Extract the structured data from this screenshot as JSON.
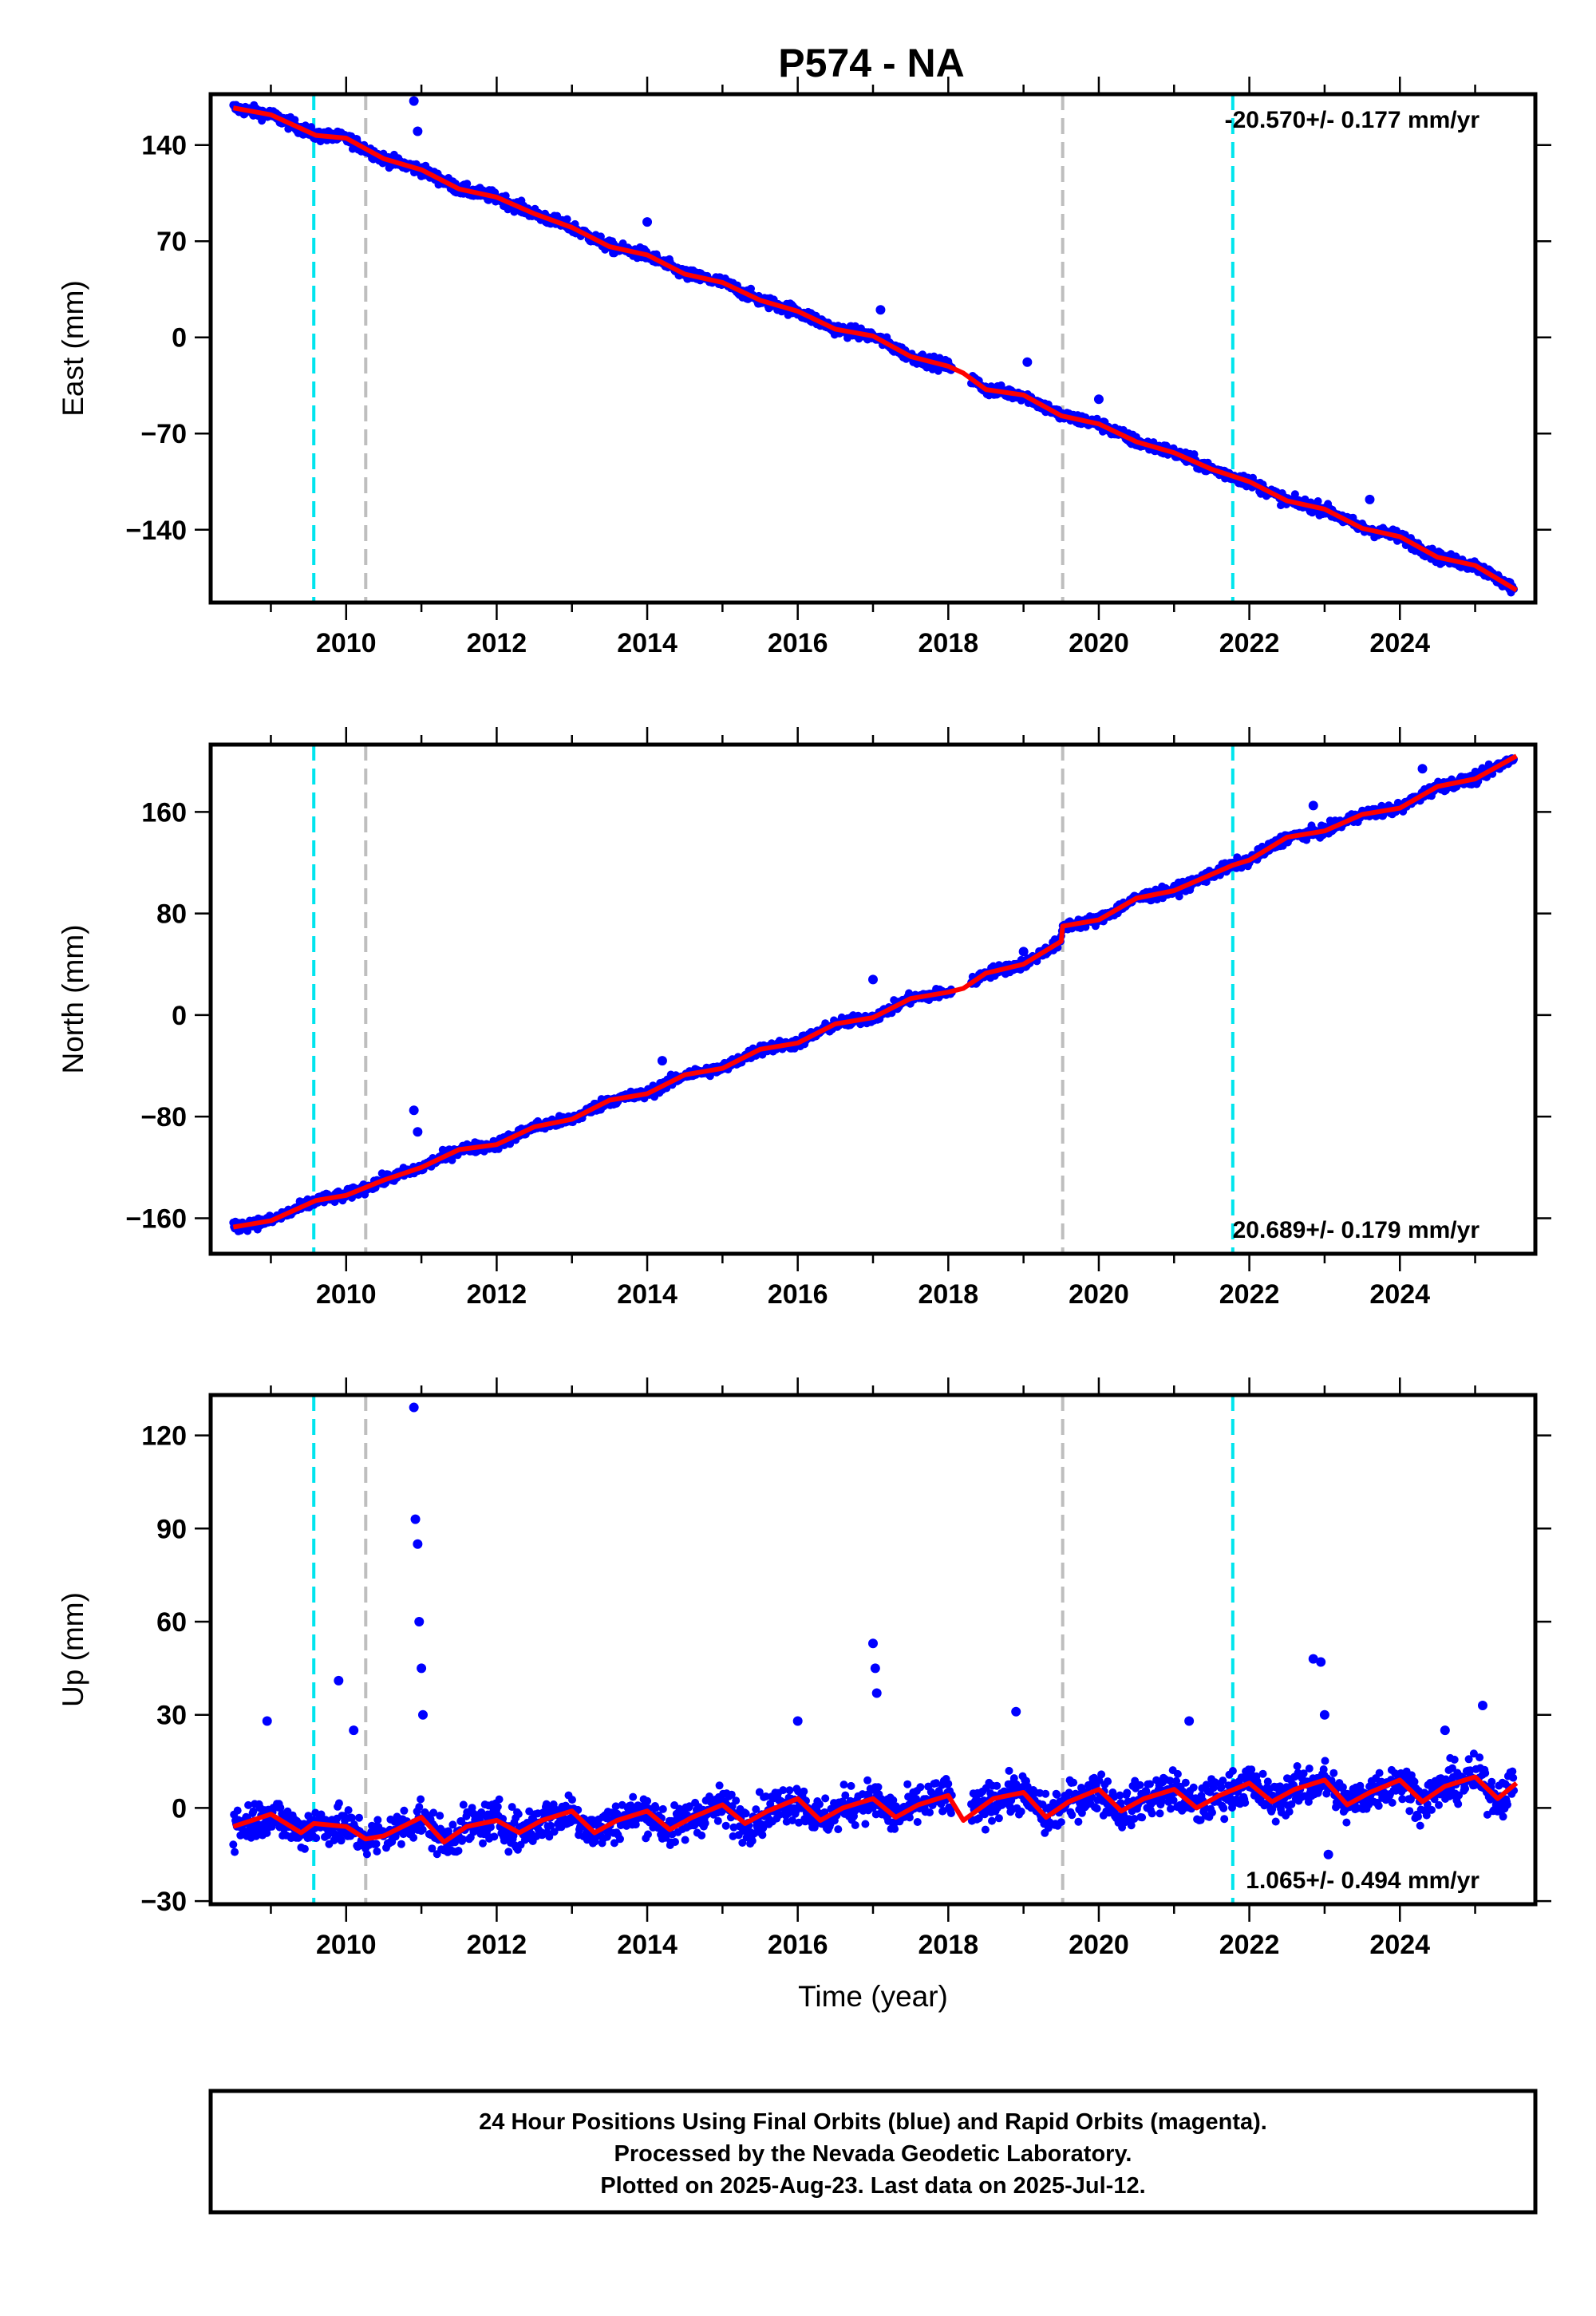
{
  "figure_title": "P574 - NA",
  "colors": {
    "final_points": "#0000ff",
    "model_line": "#ff0000",
    "equipment_change_line": "#00e5ee",
    "other_event_line": "#bebebe"
  },
  "chart_data": [
    {
      "type": "scatter",
      "panel": "East",
      "title": "",
      "xlabel": "",
      "ylabel": "East (mm)",
      "xlim": [
        2008.2,
        2025.8
      ],
      "ylim": [
        -193,
        177
      ],
      "x_ticks": [
        2010,
        2012,
        2014,
        2016,
        2018,
        2020,
        2022,
        2024
      ],
      "x_tick_labels": [
        "2010",
        "2012",
        "2014",
        "2016",
        "2018",
        "2020",
        "2022",
        "2024"
      ],
      "y_ticks": [
        140,
        70,
        0,
        -70,
        -140
      ],
      "y_tick_labels": [
        "140",
        "70",
        "0",
        "−70",
        "−140"
      ],
      "rate_annotation": "-20.570+/- 0.177 mm/yr",
      "rate_position": "top-right",
      "trend_points": [
        [
          2008.5,
          167
        ],
        [
          2009.0,
          162
        ],
        [
          2009.6,
          147
        ],
        [
          2010.0,
          145
        ],
        [
          2010.5,
          130
        ],
        [
          2011.0,
          122
        ],
        [
          2011.5,
          108
        ],
        [
          2012.0,
          102
        ],
        [
          2012.5,
          90
        ],
        [
          2013.0,
          80
        ],
        [
          2013.5,
          66
        ],
        [
          2014.0,
          60
        ],
        [
          2014.5,
          46
        ],
        [
          2015.0,
          40
        ],
        [
          2015.5,
          27
        ],
        [
          2016.0,
          19
        ],
        [
          2016.5,
          6
        ],
        [
          2017.0,
          1
        ],
        [
          2017.5,
          -14
        ],
        [
          2018.0,
          -21
        ],
        [
          2018.2,
          -26
        ],
        [
          2018.5,
          -38
        ],
        [
          2019.0,
          -42
        ],
        [
          2019.5,
          -57
        ],
        [
          2020.0,
          -63
        ],
        [
          2020.5,
          -76
        ],
        [
          2021.0,
          -84
        ],
        [
          2021.5,
          -96
        ],
        [
          2022.0,
          -105
        ],
        [
          2022.5,
          -119
        ],
        [
          2023.0,
          -125
        ],
        [
          2023.5,
          -139
        ],
        [
          2024.0,
          -145
        ],
        [
          2024.5,
          -160
        ],
        [
          2025.0,
          -166
        ],
        [
          2025.55,
          -184
        ]
      ],
      "outlier_spikes": [
        [
          2010.9,
          172
        ],
        [
          2010.95,
          150
        ],
        [
          2014.0,
          84
        ],
        [
          2017.1,
          20
        ],
        [
          2019.05,
          -18
        ],
        [
          2020.0,
          -45
        ],
        [
          2023.6,
          -118
        ]
      ],
      "equipment_changes_x": [
        2009.57,
        2021.78
      ],
      "other_events_x": [
        2010.26,
        2019.52
      ]
    },
    {
      "type": "scatter",
      "panel": "North",
      "title": "",
      "xlabel": "",
      "ylabel": "North (mm)",
      "xlim": [
        2008.2,
        2025.8
      ],
      "ylim": [
        -188,
        213
      ],
      "x_ticks": [
        2010,
        2012,
        2014,
        2016,
        2018,
        2020,
        2022,
        2024
      ],
      "x_tick_labels": [
        "2010",
        "2012",
        "2014",
        "2016",
        "2018",
        "2020",
        "2022",
        "2024"
      ],
      "y_ticks": [
        160,
        80,
        0,
        -80,
        -160
      ],
      "y_tick_labels": [
        "160",
        "80",
        "0",
        "−80",
        "−160"
      ],
      "rate_annotation": "20.689+/- 0.179 mm/yr",
      "rate_position": "bottom-right",
      "trend_points": [
        [
          2008.5,
          -167
        ],
        [
          2009.0,
          -162
        ],
        [
          2009.6,
          -146
        ],
        [
          2010.0,
          -142
        ],
        [
          2010.5,
          -130
        ],
        [
          2011.0,
          -120
        ],
        [
          2011.5,
          -106
        ],
        [
          2012.0,
          -102
        ],
        [
          2012.5,
          -88
        ],
        [
          2013.0,
          -82
        ],
        [
          2013.5,
          -67
        ],
        [
          2014.0,
          -62
        ],
        [
          2014.5,
          -47
        ],
        [
          2015.0,
          -42
        ],
        [
          2015.5,
          -27
        ],
        [
          2016.0,
          -22
        ],
        [
          2016.5,
          -7
        ],
        [
          2017.0,
          -2
        ],
        [
          2017.5,
          13
        ],
        [
          2018.0,
          18
        ],
        [
          2018.2,
          21
        ],
        [
          2018.5,
          33
        ],
        [
          2019.0,
          40
        ],
        [
          2019.5,
          58
        ],
        [
          2019.52,
          70
        ],
        [
          2020.0,
          75
        ],
        [
          2020.5,
          92
        ],
        [
          2021.0,
          98
        ],
        [
          2021.78,
          118
        ],
        [
          2022.0,
          122
        ],
        [
          2022.5,
          140
        ],
        [
          2023.0,
          145
        ],
        [
          2023.5,
          158
        ],
        [
          2024.0,
          163
        ],
        [
          2024.5,
          180
        ],
        [
          2025.0,
          186
        ],
        [
          2025.55,
          204
        ]
      ],
      "outlier_spikes": [
        [
          2010.9,
          -75
        ],
        [
          2010.95,
          -92
        ],
        [
          2014.2,
          -36
        ],
        [
          2017.0,
          28
        ],
        [
          2019.0,
          50
        ],
        [
          2022.85,
          165
        ],
        [
          2024.3,
          194
        ]
      ],
      "equipment_changes_x": [
        2009.57,
        2021.78
      ],
      "other_events_x": [
        2010.26,
        2019.52
      ]
    },
    {
      "type": "scatter",
      "panel": "Up",
      "title": "",
      "xlabel": "Time (year)",
      "ylabel": "Up (mm)",
      "xlim": [
        2008.2,
        2025.8
      ],
      "ylim": [
        -31,
        133
      ],
      "x_ticks": [
        2010,
        2012,
        2014,
        2016,
        2018,
        2020,
        2022,
        2024
      ],
      "x_tick_labels": [
        "2010",
        "2012",
        "2014",
        "2016",
        "2018",
        "2020",
        "2022",
        "2024"
      ],
      "y_ticks": [
        120,
        90,
        60,
        30,
        0,
        -30
      ],
      "y_tick_labels": [
        "120",
        "90",
        "60",
        "30",
        "0",
        "−30"
      ],
      "rate_annotation": "1.065+/- 0.494 mm/yr",
      "rate_position": "bottom-right",
      "trend_amplitude_mm": 3.5,
      "trend_points": [
        [
          2008.5,
          -6
        ],
        [
          2009.0,
          -2
        ],
        [
          2009.4,
          -8
        ],
        [
          2009.57,
          -5
        ],
        [
          2010.0,
          -6
        ],
        [
          2010.26,
          -10
        ],
        [
          2010.5,
          -9
        ],
        [
          2011.0,
          -3
        ],
        [
          2011.3,
          -11
        ],
        [
          2011.6,
          -6
        ],
        [
          2012.0,
          -4
        ],
        [
          2012.3,
          -8
        ],
        [
          2012.6,
          -4
        ],
        [
          2013.0,
          -1
        ],
        [
          2013.3,
          -8
        ],
        [
          2013.6,
          -4
        ],
        [
          2014.0,
          -1
        ],
        [
          2014.3,
          -7
        ],
        [
          2014.6,
          -3
        ],
        [
          2015.0,
          1
        ],
        [
          2015.3,
          -5
        ],
        [
          2015.6,
          -1
        ],
        [
          2016.0,
          3
        ],
        [
          2016.3,
          -4
        ],
        [
          2016.6,
          0
        ],
        [
          2017.0,
          3
        ],
        [
          2017.3,
          -3
        ],
        [
          2017.6,
          1
        ],
        [
          2018.0,
          4
        ],
        [
          2018.2,
          -4
        ],
        [
          2018.6,
          3
        ],
        [
          2019.0,
          5
        ],
        [
          2019.3,
          -3
        ],
        [
          2019.6,
          2
        ],
        [
          2020.0,
          6
        ],
        [
          2020.3,
          -1
        ],
        [
          2020.6,
          3
        ],
        [
          2021.0,
          6
        ],
        [
          2021.3,
          0
        ],
        [
          2021.6,
          4
        ],
        [
          2022.0,
          8
        ],
        [
          2022.3,
          2
        ],
        [
          2022.6,
          6
        ],
        [
          2023.0,
          9
        ],
        [
          2023.3,
          1
        ],
        [
          2023.6,
          5
        ],
        [
          2024.0,
          9
        ],
        [
          2024.3,
          2
        ],
        [
          2024.6,
          7
        ],
        [
          2025.0,
          10
        ],
        [
          2025.3,
          3
        ],
        [
          2025.55,
          8
        ]
      ],
      "outlier_spikes": [
        [
          2008.95,
          28
        ],
        [
          2009.9,
          41
        ],
        [
          2010.1,
          25
        ],
        [
          2010.9,
          129
        ],
        [
          2010.92,
          93
        ],
        [
          2010.95,
          85
        ],
        [
          2010.97,
          60
        ],
        [
          2011.0,
          45
        ],
        [
          2011.02,
          30
        ],
        [
          2016.0,
          28
        ],
        [
          2017.0,
          53
        ],
        [
          2017.03,
          45
        ],
        [
          2017.05,
          37
        ],
        [
          2018.9,
          31
        ],
        [
          2021.2,
          28
        ],
        [
          2022.85,
          48
        ],
        [
          2022.95,
          47
        ],
        [
          2023.0,
          30
        ],
        [
          2023.05,
          -15
        ],
        [
          2024.6,
          25
        ],
        [
          2025.1,
          33
        ]
      ],
      "equipment_changes_x": [
        2009.57,
        2021.78
      ],
      "other_events_x": [
        2010.26,
        2019.52
      ]
    }
  ],
  "footer_lines": [
    "24 Hour Positions Using Final Orbits (blue) and Rapid Orbits (magenta).",
    "Processed by the Nevada Geodetic Laboratory.",
    "Plotted on 2025-Aug-23. Last data on 2025-Jul-12."
  ]
}
